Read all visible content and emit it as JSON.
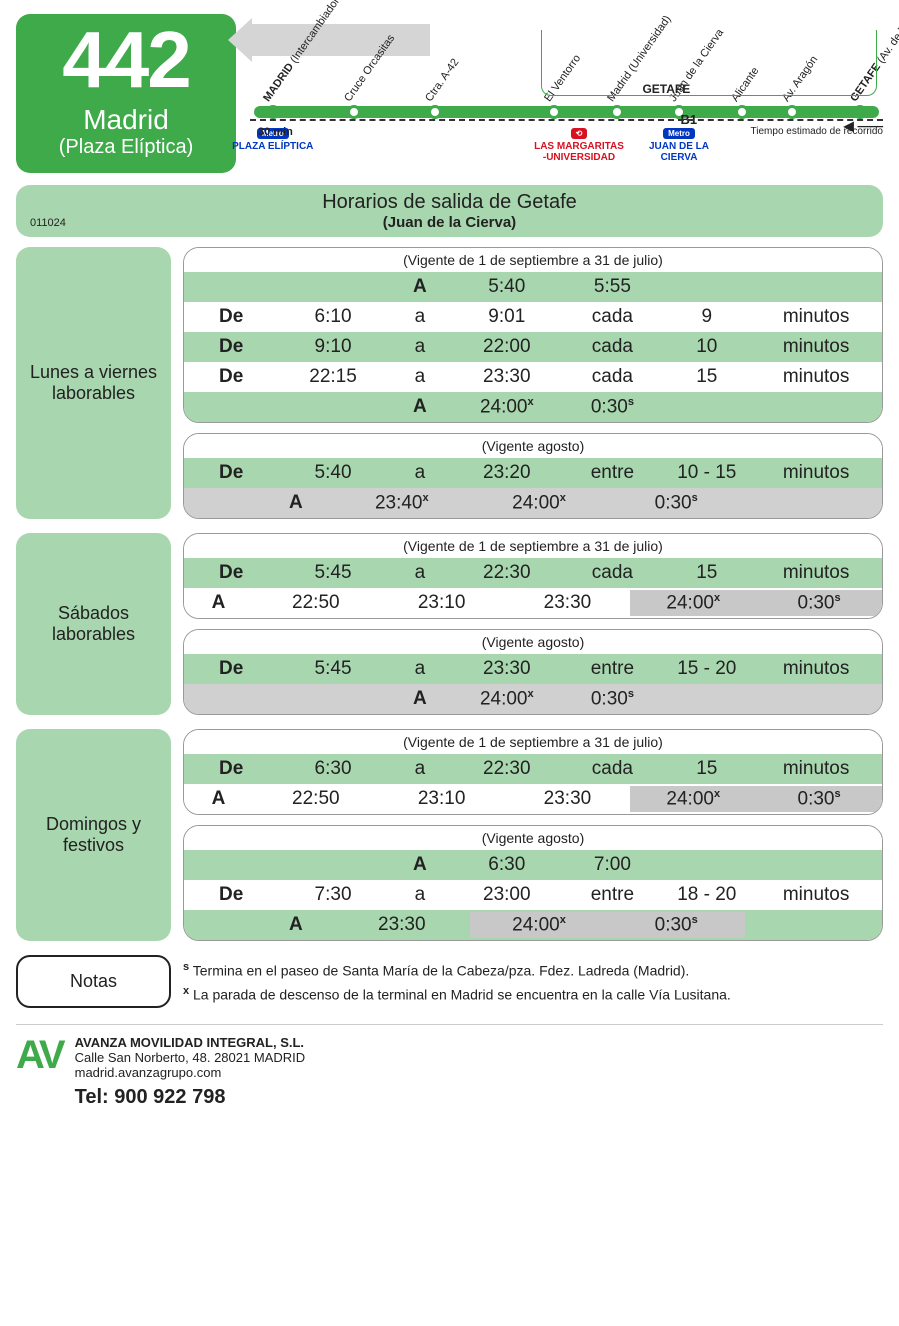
{
  "colors": {
    "green": "#3eaa4a",
    "lightgreen": "#a8d6ae",
    "grey": "#d0d0d0",
    "shade": "#c8c8c8",
    "blue": "#0037c1",
    "red": "#d81020"
  },
  "route": {
    "number": "442",
    "destination": "Madrid",
    "sub": "(Plaza Elíptica)"
  },
  "map": {
    "stops": [
      {
        "pct": 3,
        "label_bold": "MADRID",
        "label_rest": "(Intercambiador de Plaza Elíptica)"
      },
      {
        "pct": 16,
        "label": "Cruce Orcasitas"
      },
      {
        "pct": 29,
        "label": "Ctra. A-42"
      },
      {
        "pct": 48,
        "label": "El Ventorro"
      },
      {
        "pct": 58,
        "label": "Madrid (Universidad)"
      },
      {
        "pct": 68,
        "label": "Juan de la Cierva"
      },
      {
        "pct": 78,
        "label": "Alicante"
      },
      {
        "pct": 86,
        "label": "Av. Aragón"
      },
      {
        "pct": 97,
        "label_bold": "GETAFE",
        "label_rest": "(Av. de las Ciudades)"
      }
    ],
    "metro": [
      {
        "pct": 3,
        "pill": "Metro",
        "text": "PLAZA ELÍPTICA",
        "cls": ""
      },
      {
        "pct": 52,
        "pill": "⟲",
        "text": "LAS MARGARITAS -UNIVERSIDAD",
        "cls": "red"
      },
      {
        "pct": 68,
        "pill": "Metro",
        "text": "JUAN DE LA CIERVA",
        "cls": ""
      }
    ],
    "getafe_label": "GETAFE",
    "zone": "B1",
    "duration": "30 min",
    "tiempo": "Tiempo estimado de recorrido"
  },
  "title": {
    "code": "011024",
    "main": "Horarios de salida de Getafe",
    "sub": "(Juan de la Cierva)"
  },
  "sections": [
    {
      "label": "Lunes a viernes laborables",
      "tables": [
        {
          "caption": "(Vigente de 1 de septiembre a 31 de julio)",
          "rows": [
            {
              "cls": "green",
              "type": "at",
              "cells": [
                "",
                "",
                "A",
                "5:40",
                "5:55",
                "",
                ""
              ]
            },
            {
              "cls": "white",
              "type": "range",
              "cells": [
                "De",
                "6:10",
                "a",
                "9:01",
                "cada",
                "9",
                "minutos"
              ]
            },
            {
              "cls": "green",
              "type": "range",
              "cells": [
                "De",
                "9:10",
                "a",
                "22:00",
                "cada",
                "10",
                "minutos"
              ]
            },
            {
              "cls": "white",
              "type": "range",
              "cells": [
                "De",
                "22:15",
                "a",
                "23:30",
                "cada",
                "15",
                "minutos"
              ]
            },
            {
              "cls": "green",
              "type": "at2",
              "cells": [
                "",
                "",
                "A",
                "24:00ˣ",
                "0:30ˢ",
                "",
                ""
              ]
            }
          ]
        },
        {
          "caption": "(Vigente agosto)",
          "rows": [
            {
              "cls": "green",
              "type": "range",
              "cells": [
                "De",
                "5:40",
                "a",
                "23:20",
                "entre",
                "10 - 15",
                "minutos"
              ]
            },
            {
              "cls": "grey",
              "type": "at3",
              "cells": [
                "",
                "A",
                "23:40ˣ",
                "24:00ˣ",
                "0:30ˢ",
                ""
              ]
            }
          ]
        }
      ]
    },
    {
      "label": "Sábados laborables",
      "tables": [
        {
          "caption": "(Vigente de 1 de septiembre a 31 de julio)",
          "rows": [
            {
              "cls": "green",
              "type": "range",
              "cells": [
                "De",
                "5:45",
                "a",
                "22:30",
                "cada",
                "15",
                "minutos"
              ]
            },
            {
              "cls": "white",
              "type": "times",
              "cells": [
                "A",
                "22:50",
                "23:10",
                "23:30",
                "24:00ˣ",
                "0:30ˢ"
              ],
              "shade": [
                4,
                5
              ]
            }
          ]
        },
        {
          "caption": "(Vigente agosto)",
          "rows": [
            {
              "cls": "green",
              "type": "range",
              "cells": [
                "De",
                "5:45",
                "a",
                "23:30",
                "entre",
                "15 - 20",
                "minutos"
              ]
            },
            {
              "cls": "grey",
              "type": "at2",
              "cells": [
                "",
                "",
                "A",
                "24:00ˣ",
                "0:30ˢ",
                "",
                ""
              ]
            }
          ]
        }
      ]
    },
    {
      "label": "Domingos y festivos",
      "tables": [
        {
          "caption": "(Vigente de 1 de septiembre a 31 de julio)",
          "rows": [
            {
              "cls": "green",
              "type": "range",
              "cells": [
                "De",
                "6:30",
                "a",
                "22:30",
                "cada",
                "15",
                "minutos"
              ]
            },
            {
              "cls": "white",
              "type": "times",
              "cells": [
                "A",
                "22:50",
                "23:10",
                "23:30",
                "24:00ˣ",
                "0:30ˢ"
              ],
              "shade": [
                4,
                5
              ]
            }
          ]
        },
        {
          "caption": "(Vigente agosto)",
          "rows": [
            {
              "cls": "green",
              "type": "at",
              "cells": [
                "",
                "",
                "A",
                "6:30",
                "7:00",
                "",
                ""
              ]
            },
            {
              "cls": "white",
              "type": "range",
              "cells": [
                "De",
                "7:30",
                "a",
                "23:00",
                "entre",
                "18 - 20",
                "minutos"
              ]
            },
            {
              "cls": "green",
              "type": "at3b",
              "cells": [
                "",
                "A",
                "23:30",
                "24:00ˣ",
                "0:30ˢ",
                ""
              ],
              "shade": [
                3,
                4
              ]
            }
          ]
        }
      ]
    }
  ],
  "notes": {
    "label": "Notas",
    "items": [
      {
        "sup": "s",
        "text": "Termina en el paseo de Santa María de la Cabeza/pza. Fdez. Ladreda (Madrid)."
      },
      {
        "sup": "x",
        "text": "La parada de descenso de la terminal en Madrid se encuentra en la calle Vía Lusitana."
      }
    ]
  },
  "footer": {
    "logo": "AV",
    "company": "AVANZA MOVILIDAD INTEGRAL, S.L.",
    "addr": "Calle San Norberto, 48. 28021 MADRID",
    "web": "madrid.avanzagrupo.com",
    "tel_label": "Tel:",
    "tel": "900 922 798"
  }
}
